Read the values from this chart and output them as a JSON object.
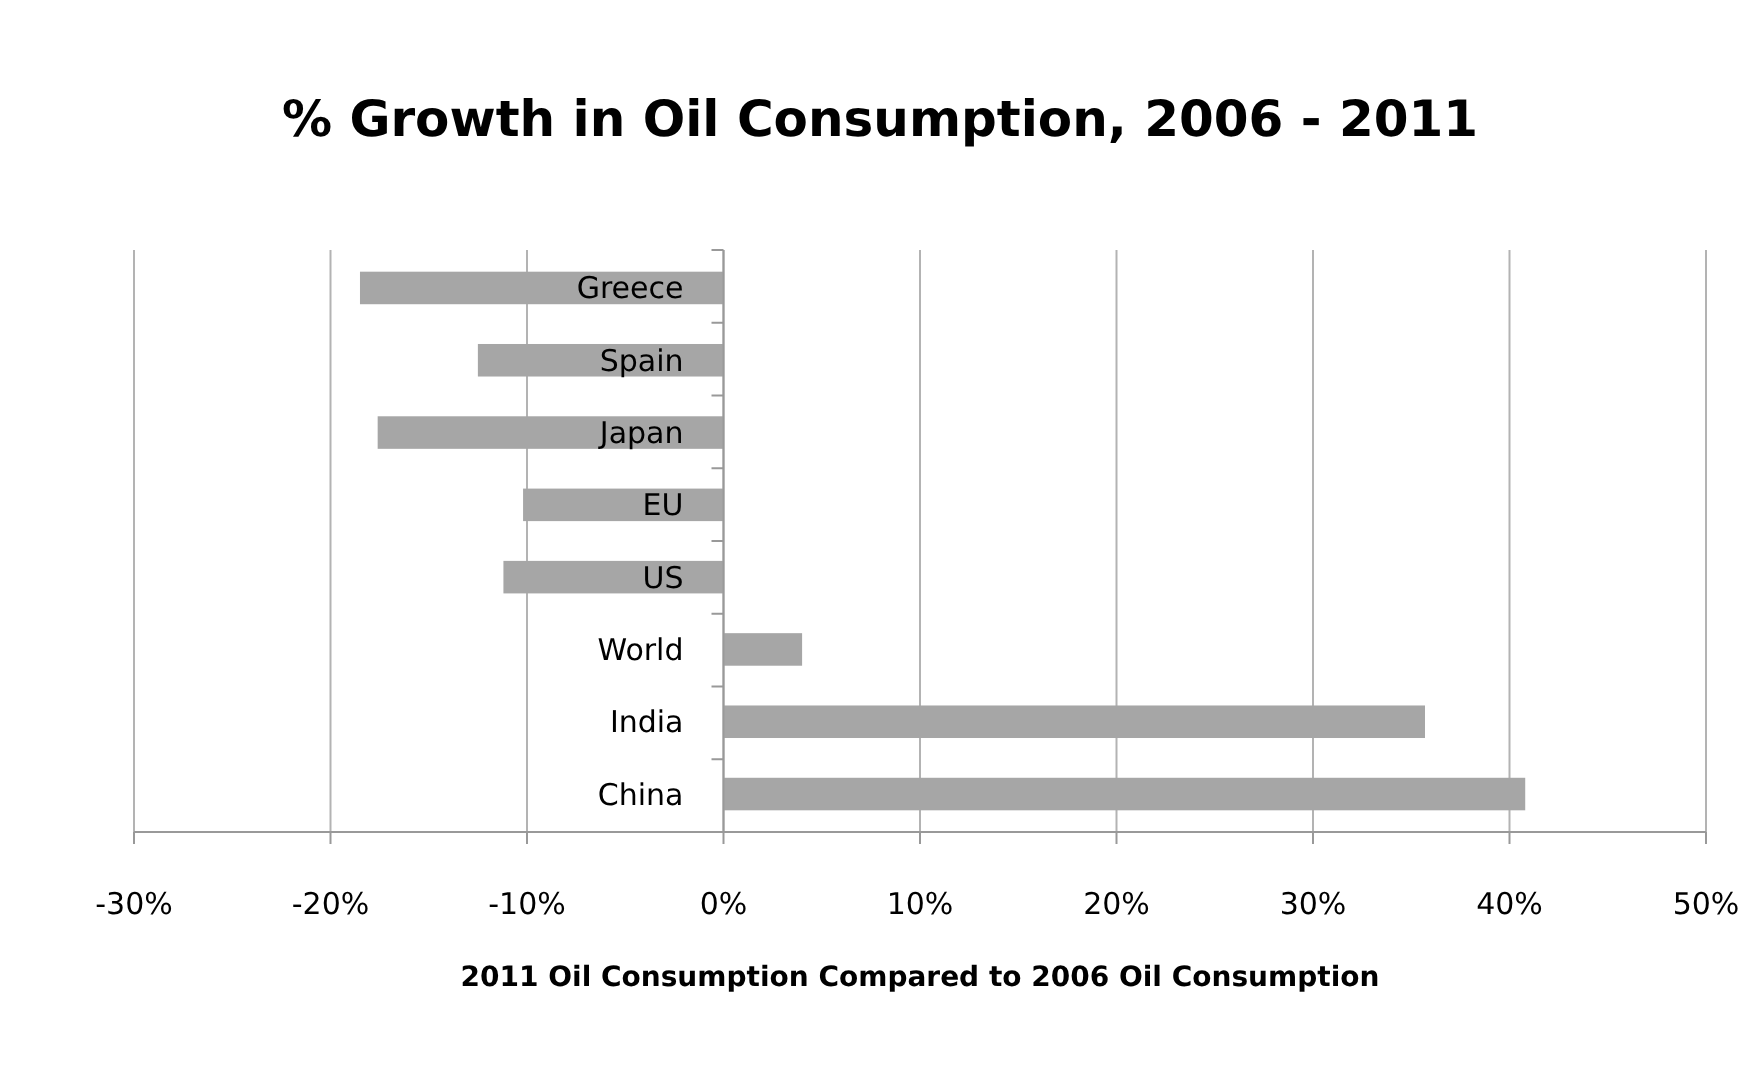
{
  "chart_data": {
    "type": "bar",
    "orientation": "horizontal",
    "title": "% Growth in Oil Consumption, 2006 - 2011",
    "xlabel": "2011 Oil Consumption Compared to 2006 Oil Consumption",
    "categories": [
      "Greece",
      "Spain",
      "Japan",
      "EU",
      "US",
      "World",
      "India",
      "China"
    ],
    "values": [
      -18.5,
      -12.5,
      -17.6,
      -10.2,
      -11.2,
      4.0,
      35.7,
      40.8
    ],
    "color": "#a6a6a6",
    "xlim": [
      -30,
      50
    ],
    "xticks": [
      {
        "value": -30,
        "label": "-30%"
      },
      {
        "value": -20,
        "label": "-20%"
      },
      {
        "value": -10,
        "label": "-10%"
      },
      {
        "value": 0,
        "label": "0%"
      },
      {
        "value": 10,
        "label": "10%"
      },
      {
        "value": 20,
        "label": "20%"
      },
      {
        "value": 30,
        "label": "30%"
      },
      {
        "value": 40,
        "label": "40%"
      },
      {
        "value": 50,
        "label": "50%"
      }
    ],
    "grid": "x"
  }
}
